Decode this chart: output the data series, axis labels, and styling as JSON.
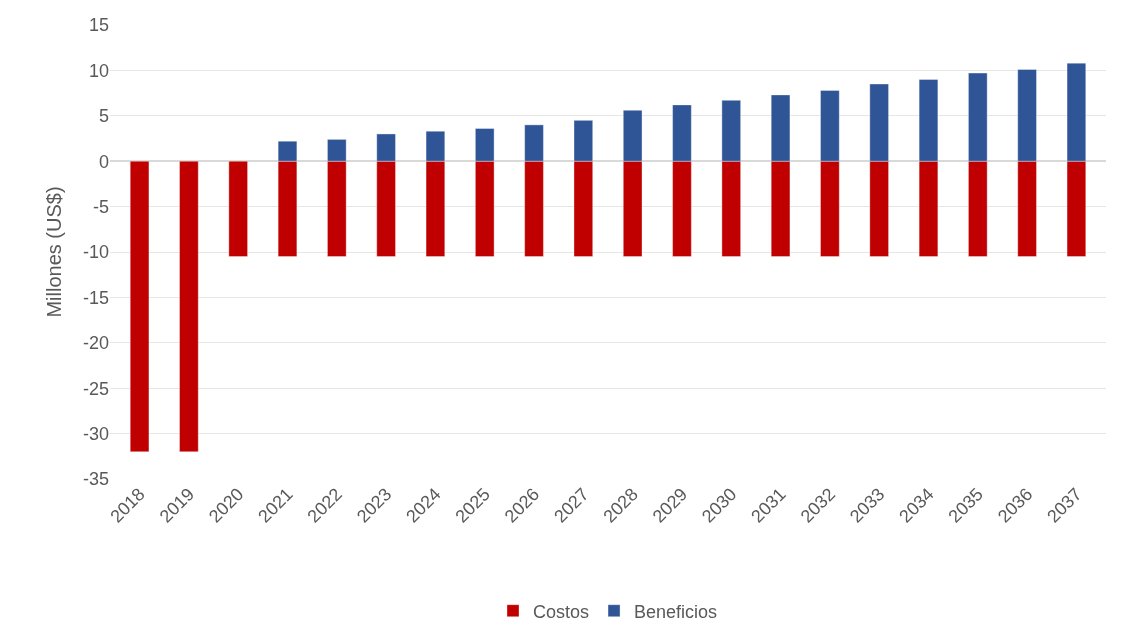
{
  "chart_data": {
    "type": "bar",
    "stacked": true,
    "ylabel": "Millones (US$)",
    "categories": [
      "2018",
      "2019",
      "2020",
      "2021",
      "2022",
      "2023",
      "2024",
      "2025",
      "2026",
      "2027",
      "2028",
      "2029",
      "2030",
      "2031",
      "2032",
      "2033",
      "2034",
      "2035",
      "2036",
      "2037"
    ],
    "series": [
      {
        "name": "Costos",
        "color": "#c00000",
        "values": [
          -32,
          -32,
          -10.5,
          -10.5,
          -10.5,
          -10.5,
          -10.5,
          -10.5,
          -10.5,
          -10.5,
          -10.5,
          -10.5,
          -10.5,
          -10.5,
          -10.5,
          -10.5,
          -10.5,
          -10.5,
          -10.5,
          -10.5
        ]
      },
      {
        "name": "Beneficios",
        "color": "#2f5597",
        "values": [
          null,
          null,
          null,
          2.2,
          2.4,
          3.0,
          3.3,
          3.6,
          4.0,
          4.5,
          5.6,
          6.2,
          6.7,
          7.3,
          7.8,
          8.5,
          9.0,
          9.7,
          10.1,
          10.8
        ]
      }
    ],
    "ylim": [
      -35,
      15
    ],
    "yticks": [
      -35,
      -30,
      -25,
      -20,
      -15,
      -10,
      -5,
      0,
      5,
      10,
      15
    ],
    "grid": "y",
    "legend": "bottom"
  }
}
